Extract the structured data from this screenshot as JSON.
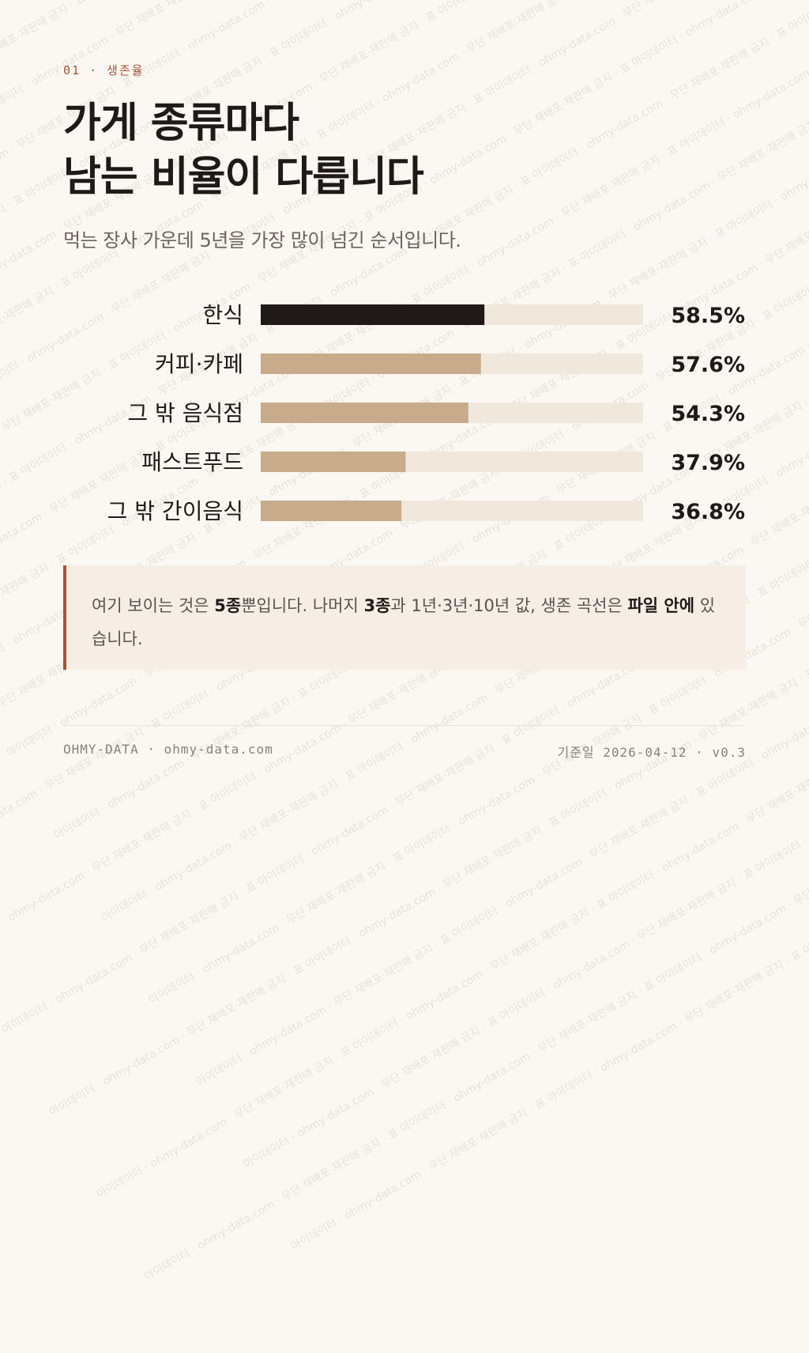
{
  "header": {
    "eyebrow": "01 · 생존율",
    "title_line1": "가게 종류마다",
    "title_line2": "남는 비율이 다릅니다",
    "subtitle": "먹는 장사 가운데 5년을 가장 많이 넘긴 순서입니다."
  },
  "chart_data": {
    "type": "bar",
    "orientation": "horizontal",
    "categories": [
      "한식",
      "커피·카페",
      "그 밖 음식점",
      "패스트푸드",
      "그 밖 간이음식"
    ],
    "values": [
      58.5,
      57.6,
      54.3,
      37.9,
      36.8
    ],
    "value_labels": [
      "58.5%",
      "57.6%",
      "54.3%",
      "37.9%",
      "36.8%"
    ],
    "xlim": [
      0,
      100
    ],
    "unit": "%",
    "grid": false,
    "highlight_index": 0,
    "colors": {
      "highlight": "#1f1a17",
      "bar": "#c8ab8b",
      "track": "#f1e8dd"
    }
  },
  "note": {
    "p1": "여기 보이는 것은 ",
    "b1": "5종",
    "p2": "뿐입니다. 나머지 ",
    "b2": "3종",
    "p3": "과 1년·3년·10년 값, 생존 곡선은 ",
    "b3": "파일 안에",
    "p4": " 있습니다."
  },
  "footer": {
    "left": "OHMY-DATA · ohmy-data.com",
    "right": "기준일 2026-04-12 · v0.3"
  },
  "watermark": {
    "text": "아이데이터 · ohmy-data.com · 무단 재배포·재판매 금지 · 표"
  },
  "colors": {
    "accent": "#a5543d",
    "background": "#fbf8f3",
    "note_background": "#f6eee5"
  }
}
